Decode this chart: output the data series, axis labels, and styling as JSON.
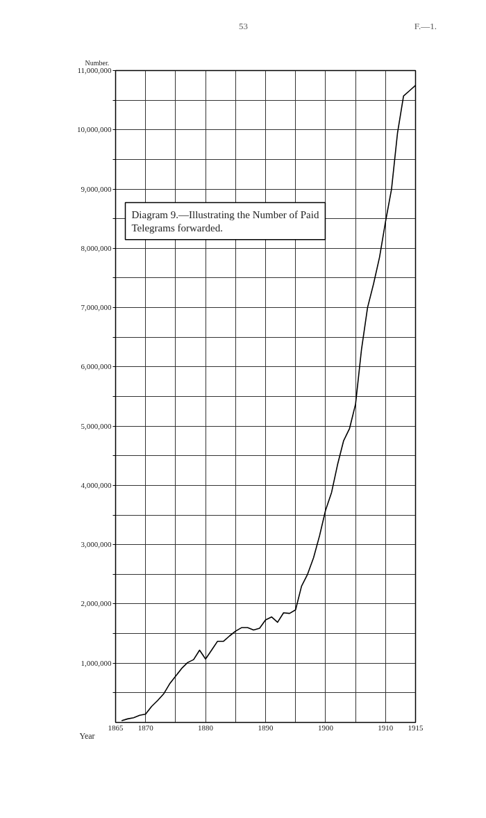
{
  "chart_data": {
    "type": "line",
    "title": "Diagram 9.—Illustrating the Number of Paid Telegrams forwarded.",
    "xlabel": "Year",
    "ylabel": "Number.",
    "annotations": [
      "53",
      "F.—1."
    ],
    "x": [
      1866,
      1867,
      1868,
      1869,
      1870,
      1871,
      1872,
      1873,
      1874,
      1875,
      1876,
      1877,
      1878,
      1879,
      1880,
      1881,
      1882,
      1883,
      1884,
      1885,
      1886,
      1887,
      1888,
      1889,
      1890,
      1891,
      1892,
      1893,
      1894,
      1895,
      1896,
      1897,
      1898,
      1899,
      1900,
      1901,
      1902,
      1903,
      1904,
      1905,
      1906,
      1907,
      1908,
      1909,
      1910,
      1911,
      1912,
      1913,
      1914,
      1915
    ],
    "series": [
      {
        "color": "#000000",
        "values": [
          30000,
          60000,
          80000,
          120000,
          140000,
          270000,
          370000,
          480000,
          650000,
          780000,
          910000,
          1010000,
          1060000,
          1220000,
          1070000,
          1220000,
          1370000,
          1370000,
          1460000,
          1540000,
          1600000,
          1600000,
          1560000,
          1590000,
          1730000,
          1780000,
          1690000,
          1850000,
          1840000,
          1900000,
          2300000,
          2500000,
          2780000,
          3150000,
          3580000,
          3880000,
          4350000,
          4750000,
          4960000,
          5370000,
          6300000,
          7000000,
          7400000,
          7850000,
          8450000,
          9000000,
          9950000,
          10570000,
          10660000,
          10750000
        ]
      }
    ],
    "xlim": [
      1865,
      1915
    ],
    "ylim": [
      0,
      11000000
    ],
    "xticks": [
      1865,
      1870,
      {
        "value": 1875,
        "label": null
      },
      1880,
      {
        "value": 1885,
        "label": null
      },
      1890,
      {
        "value": 1895,
        "label": null
      },
      1900,
      {
        "value": 1905,
        "label": null
      },
      1910,
      1915
    ],
    "yticks": [
      {
        "value": 500000,
        "label": null
      },
      {
        "value": 1000000,
        "label": "1,000,000"
      },
      {
        "value": 1500000,
        "label": null
      },
      {
        "value": 2000000,
        "label": "2,000,000"
      },
      {
        "value": 2500000,
        "label": null
      },
      {
        "value": 3000000,
        "label": "3,000,000"
      },
      {
        "value": 3500000,
        "label": null
      },
      {
        "value": 4000000,
        "label": "4,000,000"
      },
      {
        "value": 4500000,
        "label": null
      },
      {
        "value": 5000000,
        "label": "5,000,000"
      },
      {
        "value": 5500000,
        "label": null
      },
      {
        "value": 6000000,
        "label": "6,000,000"
      },
      {
        "value": 6500000,
        "label": null
      },
      {
        "value": 7000000,
        "label": "7,000,000"
      },
      {
        "value": 7500000,
        "label": null
      },
      {
        "value": 8000000,
        "label": "8,000,000"
      },
      {
        "value": 8500000,
        "label": null
      },
      {
        "value": 9000000,
        "label": "9,000,000"
      },
      {
        "value": 9500000,
        "label": null
      },
      {
        "value": 10000000,
        "label": "10,000,000"
      },
      {
        "value": 10500000,
        "label": null
      },
      {
        "value": 11000000,
        "label": "11,000,000"
      }
    ],
    "grid": true
  }
}
